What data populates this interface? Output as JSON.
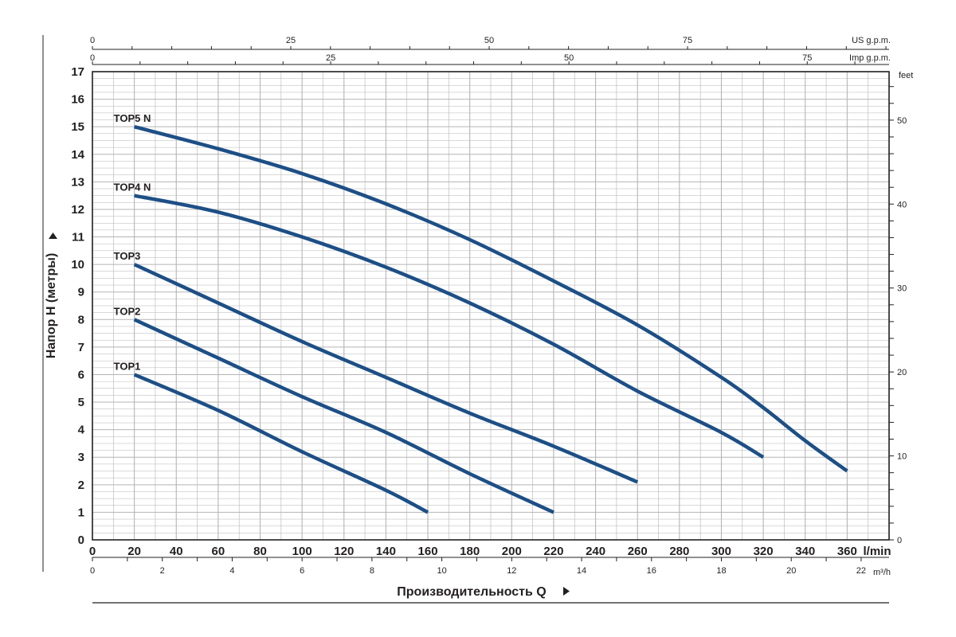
{
  "chart_data": {
    "type": "line",
    "title": "",
    "xlabel": "Производительность Q",
    "ylabel": "Напор H (метры)",
    "xlim": [
      0,
      380
    ],
    "ylim": [
      0,
      17
    ],
    "grid": true,
    "x_unit": "l/min",
    "y_unit": "",
    "x_ticks": [
      0,
      20,
      40,
      60,
      80,
      100,
      120,
      140,
      160,
      180,
      200,
      220,
      240,
      260,
      280,
      300,
      320,
      340,
      360
    ],
    "y_ticks": [
      0,
      1,
      2,
      3,
      4,
      5,
      6,
      7,
      8,
      9,
      10,
      11,
      12,
      13,
      14,
      15,
      16,
      17
    ],
    "secondary_axes": {
      "us_gpm": {
        "label": "US g.p.m.",
        "ticks": [
          "0",
          "25",
          "50",
          "75"
        ],
        "values": [
          0,
          25,
          50,
          75
        ]
      },
      "imp_gpm": {
        "label": "Imp g.p.m.",
        "ticks": [
          "0",
          "25",
          "50",
          "75"
        ],
        "values": [
          0,
          25,
          50,
          75
        ]
      },
      "feet": {
        "label": "feet",
        "ticks": [
          "0",
          "10",
          "20",
          "30",
          "40",
          "50"
        ],
        "values": [
          0,
          10,
          20,
          30,
          40,
          50
        ]
      },
      "m3h": {
        "label": "m³/h",
        "ticks": [
          "0",
          "2",
          "4",
          "6",
          "8",
          "10",
          "12",
          "14",
          "16",
          "18",
          "20",
          "22"
        ],
        "values": [
          0,
          2,
          4,
          6,
          8,
          10,
          12,
          14,
          16,
          18,
          20,
          22
        ]
      }
    },
    "series": [
      {
        "name": "TOP1",
        "points": [
          [
            20,
            6.0
          ],
          [
            60,
            4.7
          ],
          [
            100,
            3.2
          ],
          [
            140,
            1.8
          ],
          [
            160,
            1.0
          ]
        ]
      },
      {
        "name": "TOP2",
        "points": [
          [
            20,
            8.0
          ],
          [
            60,
            6.6
          ],
          [
            100,
            5.2
          ],
          [
            140,
            3.9
          ],
          [
            180,
            2.4
          ],
          [
            220,
            1.0
          ]
        ]
      },
      {
        "name": "TOP3",
        "points": [
          [
            20,
            10.0
          ],
          [
            60,
            8.6
          ],
          [
            100,
            7.2
          ],
          [
            140,
            5.9
          ],
          [
            180,
            4.6
          ],
          [
            220,
            3.4
          ],
          [
            260,
            2.1
          ]
        ]
      },
      {
        "name": "TOP4 N",
        "points": [
          [
            20,
            12.5
          ],
          [
            60,
            11.9
          ],
          [
            100,
            11.0
          ],
          [
            140,
            9.9
          ],
          [
            180,
            8.6
          ],
          [
            220,
            7.1
          ],
          [
            260,
            5.4
          ],
          [
            300,
            3.9
          ],
          [
            320,
            3.0
          ]
        ]
      },
      {
        "name": "TOP5 N",
        "points": [
          [
            20,
            15.0
          ],
          [
            60,
            14.2
          ],
          [
            100,
            13.3
          ],
          [
            140,
            12.2
          ],
          [
            180,
            10.9
          ],
          [
            220,
            9.4
          ],
          [
            260,
            7.8
          ],
          [
            300,
            5.9
          ],
          [
            320,
            4.8
          ],
          [
            340,
            3.6
          ],
          [
            360,
            2.5
          ]
        ]
      }
    ],
    "colors": {
      "curve": "#1d4f86",
      "grid": "#b5b5b5",
      "axis": "#231f20"
    }
  }
}
